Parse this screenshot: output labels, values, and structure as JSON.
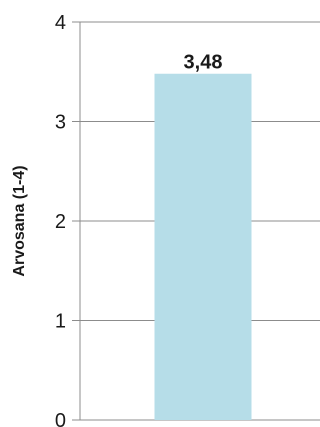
{
  "chart_data": {
    "type": "bar",
    "categories": [
      ""
    ],
    "values": [
      3.48
    ],
    "data_labels": [
      "3,48"
    ],
    "title": "",
    "xlabel": "",
    "ylabel": "Arvosana (1-4)",
    "ylim": [
      0,
      4
    ],
    "yticks": [
      0,
      1,
      2,
      3,
      4
    ],
    "ytick_labels": [
      "0",
      "1",
      "2",
      "3",
      "4"
    ],
    "grid": true,
    "bar_color": "#b6dde8"
  }
}
